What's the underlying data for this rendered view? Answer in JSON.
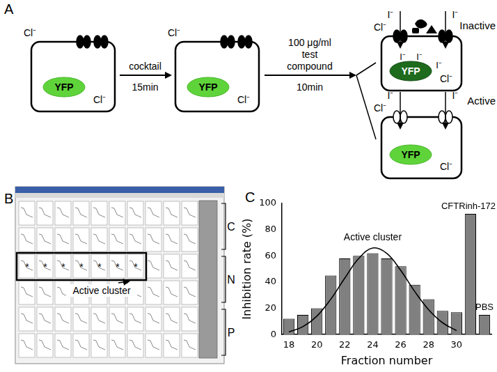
{
  "panel_a": {
    "label": "A",
    "cells": [
      {
        "outside": "Cl⁻",
        "inside": "Cl⁻",
        "reporter": "YFP",
        "entering": [],
        "in_reporter": []
      },
      {
        "outside": "Cl⁻",
        "inside": "Cl⁻",
        "reporter": "YFP",
        "entering": [],
        "in_reporter": []
      },
      {
        "outside": "Cl⁻",
        "inside": "Cl⁻",
        "reporter": "YFP",
        "entering": [
          "I⁻",
          "I⁻"
        ],
        "in_reporter": [
          "I⁻",
          "I⁻",
          "I⁻"
        ],
        "state": "Inactive"
      },
      {
        "outside": "Cl⁻",
        "inside": "Cl⁻",
        "reporter": "YFP",
        "entering": [
          "I⁻",
          "I⁻"
        ],
        "in_reporter": [],
        "state": "Active"
      }
    ],
    "steps": [
      {
        "above": [
          "cocktail"
        ],
        "below": [
          "15min"
        ]
      },
      {
        "above": [
          "100 μg/ml",
          "test",
          "compound"
        ],
        "below": [
          "10min"
        ]
      }
    ]
  },
  "panel_b": {
    "label": "B",
    "plates": [
      "C",
      "N",
      "P"
    ],
    "hits": [
      "*",
      "*",
      "*",
      "*",
      "*",
      "*",
      "*"
    ],
    "annotation": "Active cluster"
  },
  "chart_data": {
    "type": "bar",
    "label": "C",
    "x_label": "Fraction number",
    "y_label": "Inhibition rate (%)",
    "categories": [
      18,
      null,
      20,
      null,
      22,
      null,
      24,
      null,
      26,
      null,
      28,
      null,
      30,
      null,
      null
    ],
    "series": [
      {
        "type": "bar",
        "color": "#808080",
        "values": [
          12,
          15,
          20,
          45,
          58,
          60,
          62,
          58,
          52,
          38,
          27,
          18,
          17,
          92,
          15
        ],
        "bar_labels": [
          null,
          null,
          null,
          null,
          null,
          null,
          null,
          null,
          null,
          null,
          null,
          null,
          null,
          "CFTRinh-172",
          "PBS"
        ]
      },
      {
        "type": "line",
        "name": "Active cluster",
        "color": "#000000",
        "values": [
          2,
          6,
          14,
          27,
          43,
          58,
          66,
          62,
          49,
          33,
          19,
          9,
          3,
          null,
          null
        ]
      }
    ],
    "ylim": [
      0,
      100
    ],
    "yticks": [
      0,
      20,
      40,
      60,
      80,
      100
    ],
    "grid": false
  }
}
